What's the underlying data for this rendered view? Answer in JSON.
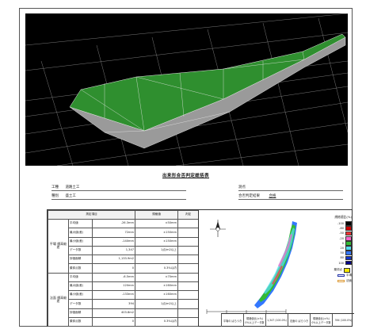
{
  "report": {
    "title": "出来形合否判定総括表",
    "info": {
      "k1": "工種",
      "v1": "道路土工",
      "k2": "種別",
      "v2": "盛土工",
      "k3": "測点",
      "k4": "合否判定結果",
      "v4": "合格"
    }
  },
  "table": {
    "headers": {
      "item": "測定項目",
      "std": "規格値",
      "judge": "判定"
    },
    "groups": [
      {
        "name": "平場 標高較差",
        "rows": [
          {
            "label": "平均値",
            "value": "-26.3mm",
            "std": "±50mm"
          },
          {
            "label": "最大値(差)",
            "value": "72mm",
            "std": "±150mm"
          },
          {
            "label": "最小値(差)",
            "value": "-140mm",
            "std": "±150mm"
          },
          {
            "label": "データ数",
            "value": "1,347",
            "std": "1点/m2以上"
          },
          {
            "label": "評価面積",
            "value": "1,133.9m2",
            "std": ""
          },
          {
            "label": "棄却点数",
            "value": "0",
            "std": "0.3%以内"
          }
        ]
      },
      {
        "name": "法面 標高較差",
        "rows": [
          {
            "label": "平均値",
            "value": "-6.5mm",
            "std": "±70mm"
          },
          {
            "label": "最大値(差)",
            "value": "120mm",
            "std": "±160mm"
          },
          {
            "label": "最小値(差)",
            "value": "-133mm",
            "std": "±160mm"
          },
          {
            "label": "データ数",
            "value": "394",
            "std": "1点/m2以上"
          },
          {
            "label": "評価面積",
            "value": "403.8m2",
            "std": ""
          },
          {
            "label": "棄却点数",
            "value": "0",
            "std": "0.3%以内"
          }
        ]
      }
    ]
  },
  "legend": {
    "title": "規格値比(%)",
    "items": [
      {
        "label": "-100",
        "color": "#000000"
      },
      {
        "label": "-80",
        "color": "#cc0000"
      },
      {
        "label": "-50",
        "color": "#ff3333"
      },
      {
        "label": "-20",
        "color": "#ff66cc"
      },
      {
        "label": "0",
        "color": "#33bb33"
      },
      {
        "label": "20",
        "color": "#55ddee"
      },
      {
        "label": "50",
        "color": "#3377ff"
      },
      {
        "label": "80",
        "color": "#1133cc"
      },
      {
        "label": "100",
        "color": "#000088"
      }
    ],
    "reject_label": "棄却点",
    "reject_color": "#f5e800",
    "flat_label": "平場",
    "flat_color": "#2233aa",
    "slope_label": "法面",
    "slope_color": "#dd9933"
  },
  "bottom": {
    "c1": "平場の ばらつき",
    "c2": "規格値比(±%) 0%以上データ数",
    "c3": "1,347 (100.0%)",
    "c4": "法面の ばらつき",
    "c5": "規格値比(±%) 0%以上データ数",
    "c6": "394 (100.0%)"
  }
}
